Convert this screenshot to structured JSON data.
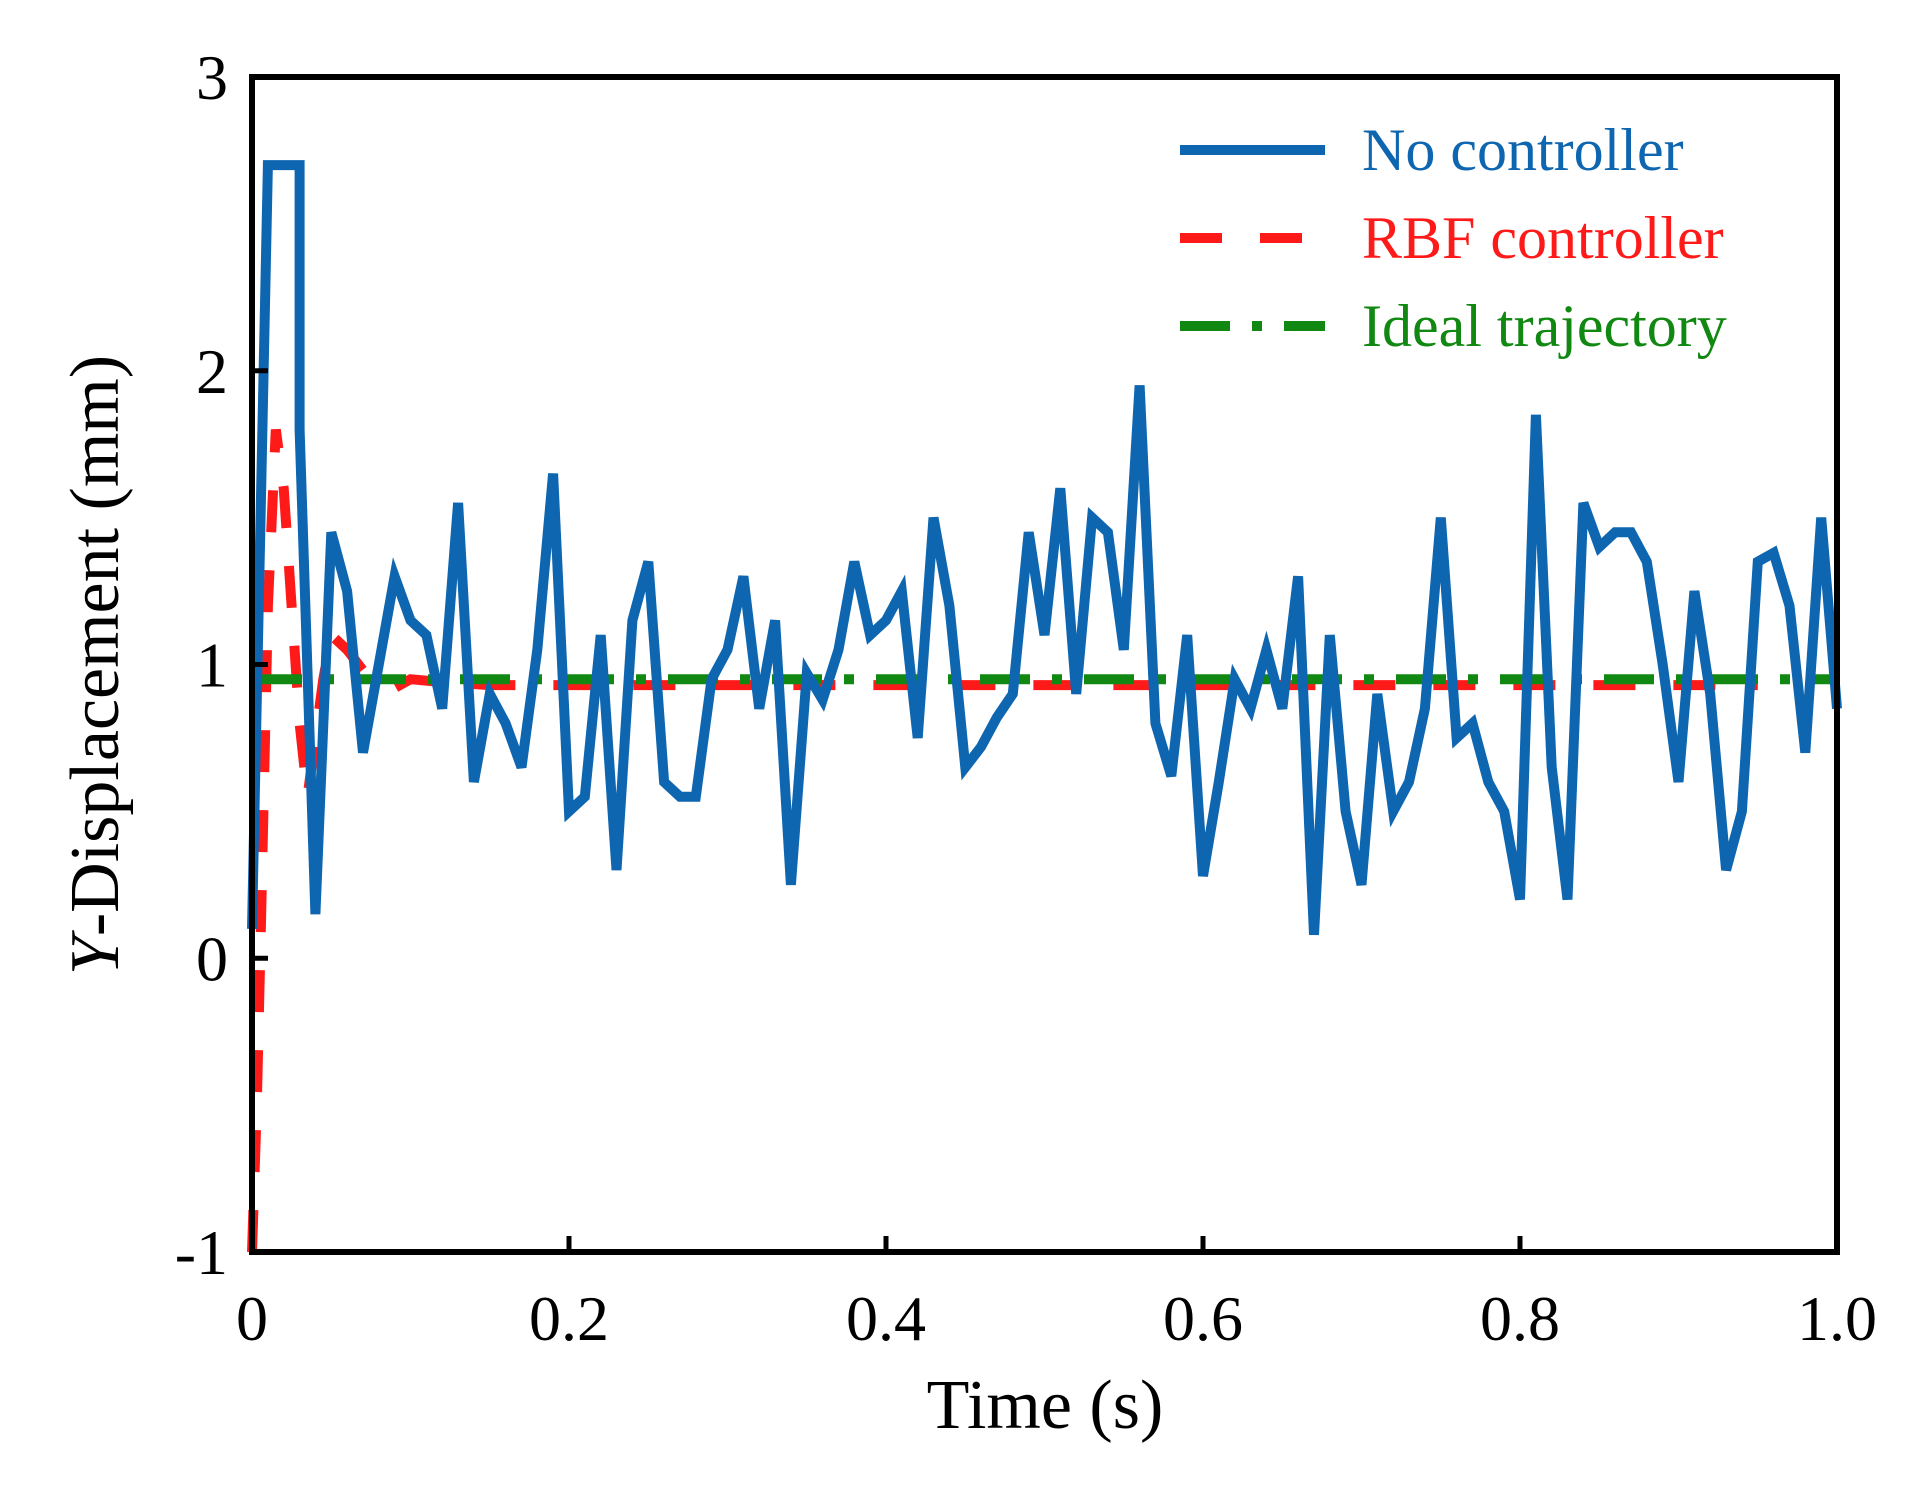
{
  "chart_data": {
    "type": "line",
    "title": "",
    "xlabel": "Time (s)",
    "ylabel_italic": "Y",
    "ylabel_rest": "-Displacement (mm)",
    "xlim": [
      0,
      1.0
    ],
    "ylim": [
      -1,
      3
    ],
    "xticks": [
      {
        "value": 0,
        "label": "0"
      },
      {
        "value": 0.2,
        "label": "0.2"
      },
      {
        "value": 0.4,
        "label": "0.4"
      },
      {
        "value": 0.6,
        "label": "0.6"
      },
      {
        "value": 0.8,
        "label": "0.8"
      },
      {
        "value": 1.0,
        "label": "1.0"
      }
    ],
    "yticks": [
      {
        "value": -1,
        "label": "-1"
      },
      {
        "value": 0,
        "label": "0"
      },
      {
        "value": 1,
        "label": "1"
      },
      {
        "value": 2,
        "label": "2"
      },
      {
        "value": 3,
        "label": "3"
      }
    ],
    "grid": false,
    "legend_position": "top-right",
    "series": [
      {
        "name": "No controller",
        "color": "#0f66b0",
        "style": "solid",
        "x": [
          0,
          0.01,
          0.02,
          0.03,
          0.03,
          0.04,
          0.05,
          0.055,
          0.06,
          0.07,
          0.08,
          0.09,
          0.1,
          0.11,
          0.12,
          0.13,
          0.14,
          0.15,
          0.16,
          0.17,
          0.18,
          0.19,
          0.2,
          0.21,
          0.22,
          0.23,
          0.24,
          0.25,
          0.26,
          0.27,
          0.28,
          0.29,
          0.3,
          0.31,
          0.32,
          0.33,
          0.34,
          0.35,
          0.36,
          0.37,
          0.38,
          0.39,
          0.4,
          0.41,
          0.42,
          0.43,
          0.44,
          0.45,
          0.46,
          0.47,
          0.48,
          0.49,
          0.5,
          0.51,
          0.52,
          0.53,
          0.54,
          0.55,
          0.56,
          0.57,
          0.58,
          0.59,
          0.6,
          0.61,
          0.62,
          0.63,
          0.64,
          0.65,
          0.66,
          0.67,
          0.68,
          0.69,
          0.7,
          0.71,
          0.72,
          0.73,
          0.74,
          0.75,
          0.76,
          0.77,
          0.78,
          0.79,
          0.8,
          0.81,
          0.82,
          0.83,
          0.84,
          0.85,
          0.86,
          0.87,
          0.88,
          0.89,
          0.9,
          0.91,
          0.92,
          0.93,
          0.94,
          0.95,
          0.96,
          0.97,
          0.98,
          0.99,
          1.0
        ],
        "values": [
          0.1,
          2.7,
          2.7,
          2.7,
          1.8,
          0.15,
          1.45,
          1.35,
          1.25,
          0.7,
          1.0,
          1.3,
          1.15,
          1.1,
          0.85,
          1.55,
          0.6,
          0.9,
          0.8,
          0.65,
          1.05,
          1.65,
          0.5,
          0.55,
          1.1,
          0.3,
          1.15,
          1.35,
          0.6,
          0.55,
          0.55,
          0.95,
          1.05,
          1.3,
          0.85,
          1.15,
          0.25,
          0.97,
          0.88,
          1.05,
          1.35,
          1.1,
          1.15,
          1.25,
          0.75,
          1.5,
          1.2,
          0.65,
          0.72,
          0.82,
          0.9,
          1.45,
          1.1,
          1.6,
          0.9,
          1.5,
          1.45,
          1.05,
          1.95,
          0.8,
          0.62,
          1.1,
          0.28,
          0.6,
          0.95,
          0.85,
          1.05,
          0.85,
          1.3,
          0.08,
          1.1,
          0.5,
          0.25,
          0.9,
          0.5,
          0.6,
          0.85,
          1.5,
          0.75,
          0.8,
          0.6,
          0.5,
          0.2,
          1.85,
          0.65,
          0.2,
          1.55,
          1.4,
          1.45,
          1.45,
          1.35,
          1.0,
          0.6,
          1.25,
          0.9,
          0.3,
          0.5,
          1.35,
          1.38,
          1.2,
          0.7,
          1.5,
          0.85
        ]
      },
      {
        "name": "RBF controller",
        "color": "#ff1a1a",
        "style": "dashed",
        "x": [
          0,
          0.003,
          0.006,
          0.01,
          0.015,
          0.02,
          0.025,
          0.03,
          0.035,
          0.04,
          0.045,
          0.05,
          0.06,
          0.07,
          0.08,
          0.09,
          0.1,
          0.12,
          0.15,
          0.2,
          0.3,
          0.4,
          0.5,
          0.6,
          0.7,
          0.8,
          0.9,
          0.95
        ],
        "values": [
          -1.0,
          -0.5,
          0.2,
          1.2,
          1.8,
          1.6,
          1.2,
          0.8,
          0.55,
          0.75,
          0.95,
          1.1,
          1.05,
          0.98,
          0.95,
          0.92,
          0.95,
          0.94,
          0.93,
          0.93,
          0.93,
          0.93,
          0.93,
          0.93,
          0.93,
          0.93,
          0.93,
          0.93
        ]
      },
      {
        "name": "Ideal trajectory",
        "color": "#118811",
        "style": "dashdot",
        "x": [
          0,
          1.0
        ],
        "values": [
          0.95,
          0.95
        ]
      }
    ]
  }
}
